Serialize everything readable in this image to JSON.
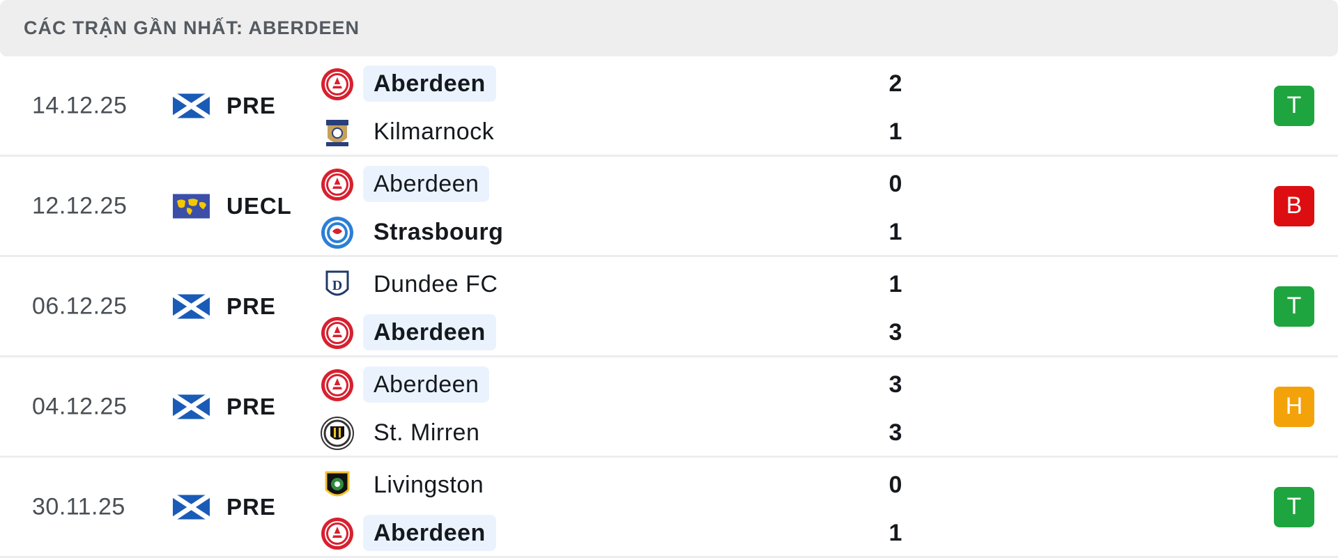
{
  "header": {
    "title": "CÁC TRẬN GẦN NHẤT: ABERDEEN"
  },
  "colors": {
    "win": "#1fa53f",
    "loss": "#dd0e12",
    "draw": "#f4a20a",
    "highlight": "#eaf3fd"
  },
  "matches": [
    {
      "date": "14.12.25",
      "competition": "PRE",
      "flag": "scotland-flag-icon",
      "home": {
        "name": "Aberdeen",
        "score": "2",
        "logo": "aberdeen-crest-icon"
      },
      "away": {
        "name": "Kilmarnock",
        "score": "1",
        "logo": "kilmarnock-crest-icon"
      },
      "result": "T"
    },
    {
      "date": "12.12.25",
      "competition": "UECL",
      "flag": "world-map-flag-icon",
      "home": {
        "name": "Aberdeen",
        "score": "0",
        "logo": "aberdeen-crest-icon"
      },
      "away": {
        "name": "Strasbourg",
        "score": "1",
        "logo": "strasbourg-crest-icon"
      },
      "result": "B"
    },
    {
      "date": "06.12.25",
      "competition": "PRE",
      "flag": "scotland-flag-icon",
      "home": {
        "name": "Dundee FC",
        "score": "1",
        "logo": "dundee-crest-icon"
      },
      "away": {
        "name": "Aberdeen",
        "score": "3",
        "logo": "aberdeen-crest-icon"
      },
      "result": "T"
    },
    {
      "date": "04.12.25",
      "competition": "PRE",
      "flag": "scotland-flag-icon",
      "home": {
        "name": "Aberdeen",
        "score": "3",
        "logo": "aberdeen-crest-icon"
      },
      "away": {
        "name": "St. Mirren",
        "score": "3",
        "logo": "st-mirren-crest-icon"
      },
      "result": "H"
    },
    {
      "date": "30.11.25",
      "competition": "PRE",
      "flag": "scotland-flag-icon",
      "home": {
        "name": "Livingston",
        "score": "0",
        "logo": "livingston-crest-icon"
      },
      "away": {
        "name": "Aberdeen",
        "score": "1",
        "logo": "aberdeen-crest-icon"
      },
      "result": "T"
    }
  ]
}
